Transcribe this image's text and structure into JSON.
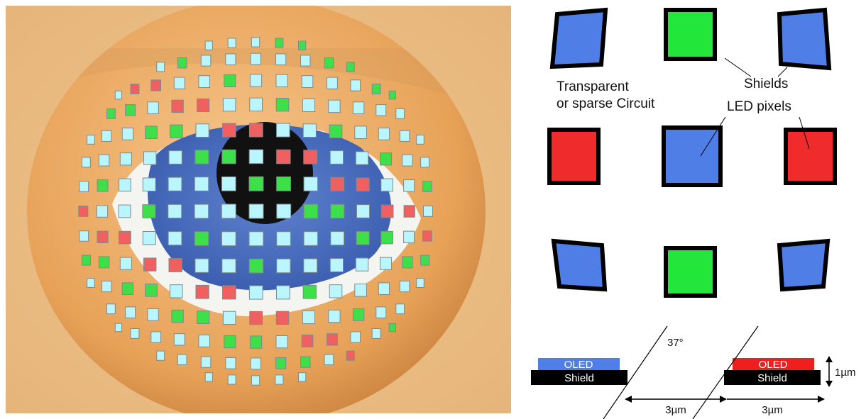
{
  "labels": {
    "transparent_line1": "Transparent",
    "transparent_line2": "or sparse Circuit",
    "shields": "Shields",
    "led_pixels": "LED pixels",
    "angle": "37°",
    "oled": "OLED",
    "shield": "Shield",
    "height": "1µm",
    "gap": "3µm",
    "pitch": "3µm"
  },
  "colors": {
    "blue": "#4f7fe6",
    "green": "#22e63a",
    "red": "#ef2b2b",
    "cyan_pixel": "#b9f6ff",
    "skin": "#e2a65e",
    "iris": "#3d5fb3"
  }
}
